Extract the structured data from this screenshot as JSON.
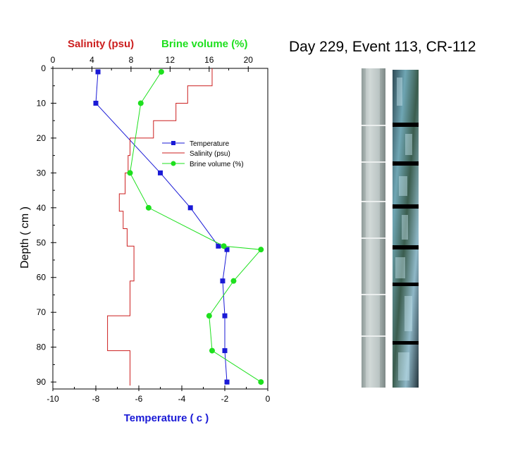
{
  "title": "Day 229, Event 113, CR-112",
  "colors": {
    "temperature": "#1a1ad6",
    "salinity": "#cc1f1f",
    "brine": "#1ee01e"
  },
  "chart_data": {
    "type": "line",
    "orientation": "depth-profile",
    "ylabel": "Depth ( cm )",
    "ylim": [
      92,
      0
    ],
    "yticks": [
      0,
      10,
      20,
      30,
      40,
      50,
      60,
      70,
      80,
      90
    ],
    "bottom_axis": {
      "label": "Temperature ( c )",
      "range": [
        -10,
        0
      ],
      "ticks": [
        -10,
        -8,
        -6,
        -4,
        -2,
        0
      ]
    },
    "top_axis": {
      "label_1": "Salinity (psu)",
      "label_2": "Brine volume (%)",
      "range": [
        0,
        22
      ],
      "ticks": [
        0,
        4,
        8,
        12,
        16,
        20
      ]
    },
    "grid": false,
    "legend": "center-right",
    "series": [
      {
        "name": "Temperature",
        "axis": "bottom",
        "marker": "square",
        "points": [
          [
            -7.9,
            1
          ],
          [
            -8.0,
            10
          ],
          [
            -5.0,
            30
          ],
          [
            -3.6,
            40
          ],
          [
            -2.3,
            51
          ],
          [
            -1.9,
            52
          ],
          [
            -2.1,
            61
          ],
          [
            -2.0,
            71
          ],
          [
            -2.0,
            81
          ],
          [
            -1.9,
            90
          ]
        ]
      },
      {
        "name": "Salinity (psu)",
        "axis": "top",
        "step": true,
        "points": [
          [
            16.3,
            0
          ],
          [
            16.3,
            5
          ],
          [
            13.8,
            5
          ],
          [
            13.8,
            10
          ],
          [
            12.6,
            10
          ],
          [
            12.6,
            15
          ],
          [
            10.3,
            15
          ],
          [
            10.3,
            20
          ],
          [
            7.9,
            20
          ],
          [
            7.9,
            25
          ],
          [
            7.7,
            25
          ],
          [
            7.7,
            30
          ],
          [
            7.4,
            30
          ],
          [
            7.4,
            36
          ],
          [
            6.8,
            36
          ],
          [
            6.8,
            41
          ],
          [
            7.2,
            41
          ],
          [
            7.2,
            46
          ],
          [
            7.6,
            46
          ],
          [
            7.6,
            51
          ],
          [
            8.3,
            51
          ],
          [
            8.3,
            61
          ],
          [
            7.9,
            61
          ],
          [
            7.9,
            71
          ],
          [
            5.6,
            71
          ],
          [
            5.6,
            81
          ],
          [
            7.9,
            81
          ],
          [
            7.9,
            91
          ]
        ]
      },
      {
        "name": "Brine volume (%)",
        "axis": "top",
        "marker": "circle",
        "points": [
          [
            11.1,
            1
          ],
          [
            9.0,
            10
          ],
          [
            7.9,
            30
          ],
          [
            9.8,
            40
          ],
          [
            17.5,
            51
          ],
          [
            21.3,
            52
          ],
          [
            18.5,
            61
          ],
          [
            16.0,
            71
          ],
          [
            16.3,
            81
          ],
          [
            21.3,
            90
          ]
        ]
      }
    ]
  }
}
